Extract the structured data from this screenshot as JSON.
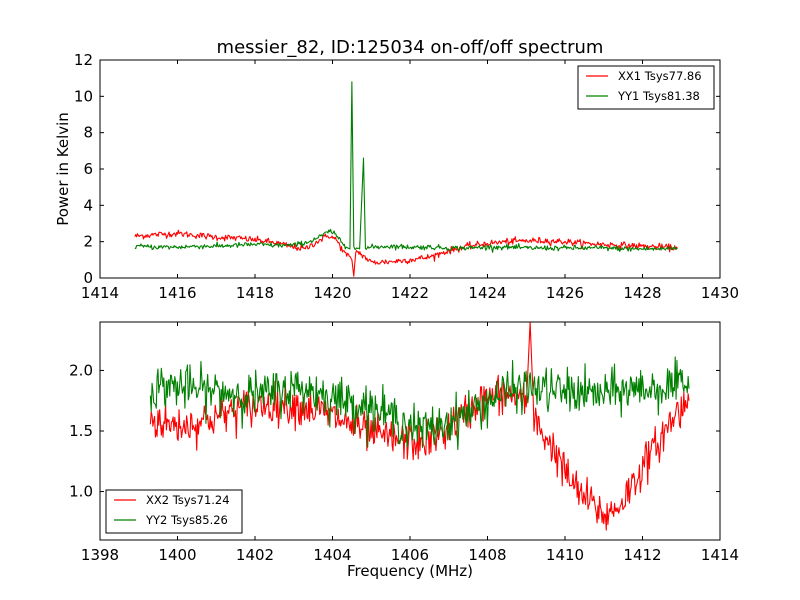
{
  "chart_data": [
    {
      "type": "line",
      "title": "messier_82, ID:125034 on-off/off spectrum",
      "xlabel": "",
      "ylabel": "Power in Kelvin",
      "xlim": [
        1414,
        1430
      ],
      "ylim": [
        0,
        12
      ],
      "xticks": [
        1414,
        1416,
        1418,
        1420,
        1422,
        1424,
        1426,
        1428,
        1430
      ],
      "yticks": [
        0,
        2,
        4,
        6,
        8,
        10,
        12
      ],
      "legend_position": "top-right",
      "grid": false,
      "series": [
        {
          "name": "XX1 Tsys77.86",
          "color": "#ff0000",
          "points": [
            [
              1414.9,
              2.3
            ],
            [
              1415.5,
              2.4
            ],
            [
              1416.0,
              2.45
            ],
            [
              1416.5,
              2.35
            ],
            [
              1417.0,
              2.25
            ],
            [
              1417.5,
              2.2
            ],
            [
              1418.0,
              2.1
            ],
            [
              1418.5,
              1.95
            ],
            [
              1419.0,
              1.7
            ],
            [
              1419.3,
              1.6
            ],
            [
              1419.6,
              2.0
            ],
            [
              1419.9,
              2.35
            ],
            [
              1420.1,
              2.1
            ],
            [
              1420.3,
              1.4
            ],
            [
              1420.5,
              1.0
            ],
            [
              1420.55,
              0.1
            ],
            [
              1420.6,
              1.5
            ],
            [
              1420.75,
              1.3
            ],
            [
              1421.0,
              0.85
            ],
            [
              1421.5,
              0.9
            ],
            [
              1422.0,
              1.0
            ],
            [
              1422.5,
              1.15
            ],
            [
              1423.0,
              1.5
            ],
            [
              1423.5,
              1.75
            ],
            [
              1424.0,
              1.9
            ],
            [
              1424.5,
              2.0
            ],
            [
              1425.0,
              2.05
            ],
            [
              1425.5,
              2.05
            ],
            [
              1426.0,
              2.0
            ],
            [
              1426.5,
              1.9
            ],
            [
              1427.0,
              1.85
            ],
            [
              1427.5,
              1.8
            ],
            [
              1428.0,
              1.75
            ],
            [
              1428.5,
              1.7
            ],
            [
              1428.9,
              1.65
            ]
          ]
        },
        {
          "name": "YY1 Tsys81.38",
          "color": "#008000",
          "points": [
            [
              1414.9,
              1.75
            ],
            [
              1415.5,
              1.7
            ],
            [
              1416.0,
              1.7
            ],
            [
              1416.5,
              1.75
            ],
            [
              1417.0,
              1.75
            ],
            [
              1417.5,
              1.8
            ],
            [
              1418.0,
              1.85
            ],
            [
              1418.5,
              1.8
            ],
            [
              1419.0,
              1.8
            ],
            [
              1419.4,
              2.0
            ],
            [
              1419.7,
              2.3
            ],
            [
              1419.95,
              2.6
            ],
            [
              1420.2,
              2.1
            ],
            [
              1420.35,
              1.7
            ],
            [
              1420.45,
              1.6
            ],
            [
              1420.5,
              10.8
            ],
            [
              1420.55,
              1.8
            ],
            [
              1420.7,
              1.6
            ],
            [
              1420.8,
              6.6
            ],
            [
              1420.85,
              1.6
            ],
            [
              1421.0,
              1.7
            ],
            [
              1421.5,
              1.75
            ],
            [
              1422.0,
              1.7
            ],
            [
              1422.5,
              1.7
            ],
            [
              1423.0,
              1.65
            ],
            [
              1423.5,
              1.65
            ],
            [
              1424.0,
              1.7
            ],
            [
              1424.5,
              1.7
            ],
            [
              1425.0,
              1.65
            ],
            [
              1425.5,
              1.65
            ],
            [
              1426.0,
              1.65
            ],
            [
              1426.5,
              1.65
            ],
            [
              1427.0,
              1.65
            ],
            [
              1427.5,
              1.6
            ],
            [
              1428.0,
              1.6
            ],
            [
              1428.5,
              1.6
            ],
            [
              1428.9,
              1.65
            ]
          ]
        }
      ]
    },
    {
      "type": "line",
      "title": "",
      "xlabel": "Frequency (MHz)",
      "ylabel": "",
      "xlim": [
        1398,
        1414
      ],
      "ylim": [
        0.6,
        2.4
      ],
      "xticks": [
        1398,
        1400,
        1402,
        1404,
        1406,
        1408,
        1410,
        1412,
        1414
      ],
      "yticks": [
        1.0,
        1.5,
        2.0
      ],
      "ytick_labels": [
        "1.0",
        "1.5",
        "2.0"
      ],
      "legend_position": "bottom-left",
      "grid": false,
      "series": [
        {
          "name": "XX2 Tsys71.24",
          "color": "#ff0000",
          "points": [
            [
              1399.3,
              1.6
            ],
            [
              1399.8,
              1.55
            ],
            [
              1400.3,
              1.55
            ],
            [
              1400.8,
              1.6
            ],
            [
              1401.3,
              1.65
            ],
            [
              1401.8,
              1.7
            ],
            [
              1402.3,
              1.72
            ],
            [
              1402.8,
              1.72
            ],
            [
              1403.3,
              1.7
            ],
            [
              1403.8,
              1.65
            ],
            [
              1404.3,
              1.58
            ],
            [
              1404.8,
              1.5
            ],
            [
              1405.3,
              1.45
            ],
            [
              1405.8,
              1.42
            ],
            [
              1406.3,
              1.4
            ],
            [
              1406.8,
              1.48
            ],
            [
              1407.3,
              1.6
            ],
            [
              1407.8,
              1.75
            ],
            [
              1408.3,
              1.8
            ],
            [
              1408.8,
              1.78
            ],
            [
              1409.0,
              1.7
            ],
            [
              1409.1,
              2.4
            ],
            [
              1409.2,
              1.6
            ],
            [
              1409.5,
              1.45
            ],
            [
              1409.8,
              1.3
            ],
            [
              1410.1,
              1.1
            ],
            [
              1410.4,
              0.98
            ],
            [
              1410.7,
              0.9
            ],
            [
              1411.0,
              0.8
            ],
            [
              1411.3,
              0.85
            ],
            [
              1411.6,
              0.98
            ],
            [
              1411.9,
              1.15
            ],
            [
              1412.2,
              1.3
            ],
            [
              1412.5,
              1.45
            ],
            [
              1412.8,
              1.62
            ],
            [
              1413.2,
              1.75
            ]
          ]
        },
        {
          "name": "YY2 Tsys85.26",
          "color": "#008000",
          "points": [
            [
              1399.3,
              1.85
            ],
            [
              1399.8,
              1.88
            ],
            [
              1400.3,
              1.85
            ],
            [
              1400.8,
              1.83
            ],
            [
              1401.3,
              1.82
            ],
            [
              1401.8,
              1.8
            ],
            [
              1402.3,
              1.8
            ],
            [
              1402.8,
              1.85
            ],
            [
              1403.3,
              1.85
            ],
            [
              1403.8,
              1.8
            ],
            [
              1404.3,
              1.75
            ],
            [
              1404.8,
              1.72
            ],
            [
              1405.3,
              1.65
            ],
            [
              1405.8,
              1.58
            ],
            [
              1406.3,
              1.5
            ],
            [
              1406.8,
              1.55
            ],
            [
              1407.3,
              1.62
            ],
            [
              1407.8,
              1.7
            ],
            [
              1408.3,
              1.8
            ],
            [
              1408.8,
              1.85
            ],
            [
              1409.3,
              1.85
            ],
            [
              1409.8,
              1.83
            ],
            [
              1410.3,
              1.82
            ],
            [
              1410.8,
              1.8
            ],
            [
              1411.3,
              1.82
            ],
            [
              1411.8,
              1.85
            ],
            [
              1412.3,
              1.85
            ],
            [
              1412.8,
              1.87
            ],
            [
              1413.2,
              1.85
            ]
          ]
        }
      ]
    }
  ]
}
